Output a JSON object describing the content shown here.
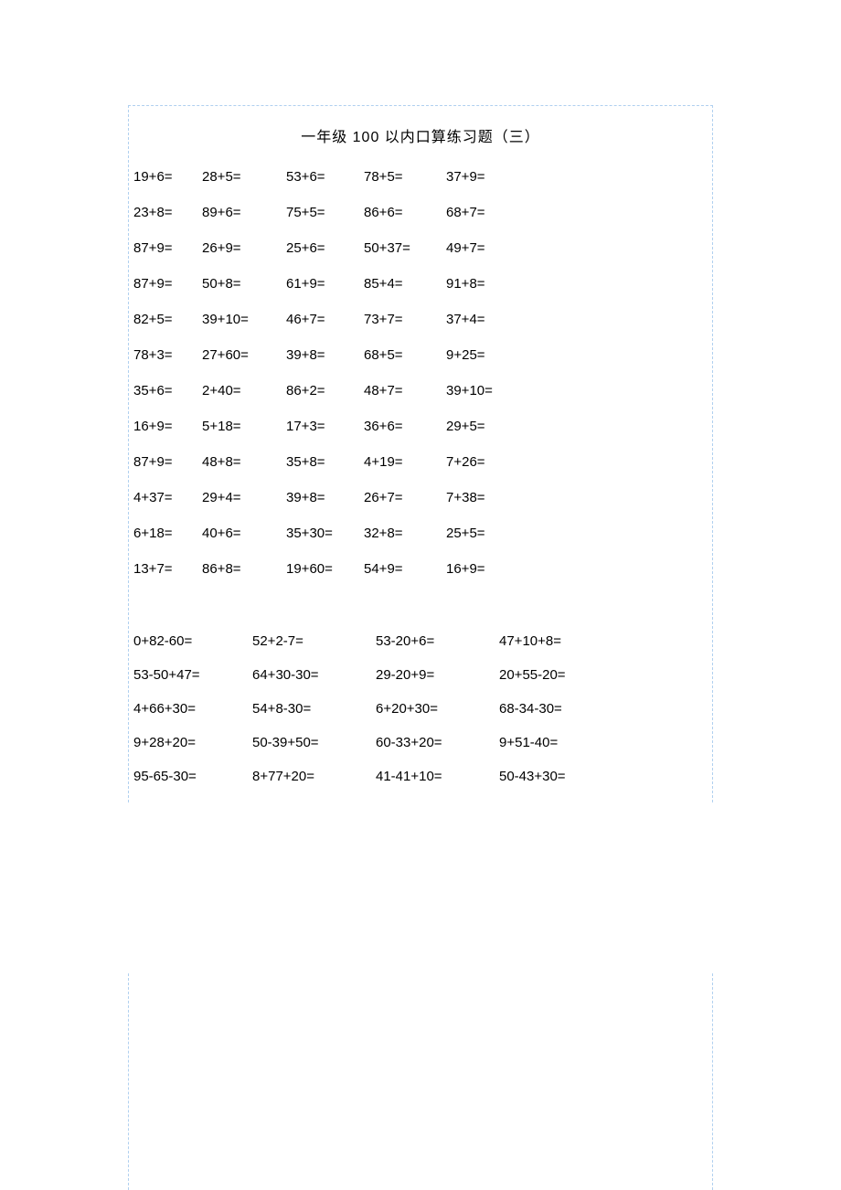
{
  "title": "一年级   100 以内口算练习题（三）",
  "section1": {
    "rows": [
      [
        "19+6=",
        "28+5=",
        "53+6=",
        "78+5=",
        "37+9="
      ],
      [
        "23+8=",
        "89+6=",
        "75+5=",
        "86+6=",
        "68+7="
      ],
      [
        "87+9=",
        "26+9=",
        "25+6=",
        "50+37=",
        "49+7="
      ],
      [
        "87+9=",
        "50+8=",
        "61+9=",
        "85+4=",
        "91+8="
      ],
      [
        "82+5=",
        "39+10=",
        "46+7=",
        "73+7=",
        "37+4="
      ],
      [
        "78+3=",
        "27+60=",
        "39+8=",
        "68+5=",
        "9+25="
      ],
      [
        "35+6=",
        "2+40=",
        "86+2=",
        "48+7=",
        "39+10="
      ],
      [
        "16+9=",
        "5+18=",
        "17+3=",
        "36+6=",
        "29+5="
      ],
      [
        "87+9=",
        "48+8=",
        "35+8=",
        "4+19=",
        "7+26="
      ],
      [
        "4+37=",
        "29+4=",
        "39+8=",
        "26+7=",
        "7+38="
      ],
      [
        "6+18=",
        "40+6=",
        "35+30=",
        "32+8=",
        "25+5="
      ],
      [
        "13+7=",
        "86+8=",
        "19+60=",
        "54+9=",
        "16+9="
      ]
    ]
  },
  "section2": {
    "rows": [
      [
        "0+82-60=",
        "52+2-7=",
        "53-20+6=",
        "47+10+8="
      ],
      [
        "53-50+47=",
        "64+30-30=",
        "29-20+9=",
        "20+55-20="
      ],
      [
        "4+66+30=",
        "54+8-30=",
        "6+20+30=",
        "68-34-30="
      ],
      [
        "9+28+20=",
        "50-39+50=",
        "60-33+20=",
        "9+51-40="
      ],
      [
        "95-65-30=",
        "8+77+20=",
        "41-41+10=",
        "50-43+30="
      ]
    ]
  },
  "colors": {
    "text": "#000000",
    "background": "#ffffff",
    "border": "#b0d0f0"
  },
  "fonts": {
    "title_size": 16,
    "body_size": 15
  }
}
